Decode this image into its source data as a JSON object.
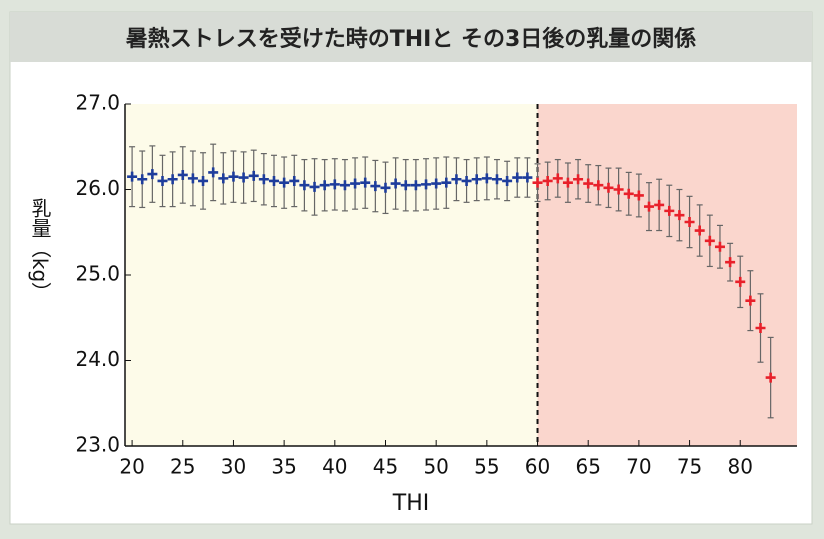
{
  "chart_data": {
    "type": "errorbar-scatter",
    "title": "暑熱ストレスを受けた時のTHIと その3日後の乳量の関係",
    "xlabel": "THI",
    "ylabel": "乳量（kg）",
    "xlim": [
      19.3,
      85.6
    ],
    "ylim": [
      23,
      27
    ],
    "xticks": [
      20,
      25,
      30,
      35,
      40,
      45,
      50,
      55,
      60,
      65,
      70,
      75,
      80
    ],
    "yticks": [
      {
        "value": 23,
        "label": "23.0"
      },
      {
        "value": 24,
        "label": "24.0"
      },
      {
        "value": 25,
        "label": "25.0"
      },
      {
        "value": 26,
        "label": "26.0"
      },
      {
        "value": 27,
        "label": "27.0"
      }
    ],
    "threshold_x": 60,
    "region_colors": [
      "#fdfbe9",
      "#fad6cd"
    ],
    "series": [
      {
        "color": "#1e3d9c",
        "x": [
          20,
          21,
          22,
          23,
          24,
          25,
          26,
          27,
          28,
          29,
          30,
          31,
          32,
          33,
          34,
          35,
          36,
          37,
          38,
          39,
          40,
          41,
          42,
          43,
          44,
          45,
          46,
          47,
          48,
          49,
          50,
          51,
          52,
          53,
          54,
          55,
          56,
          57,
          58,
          59
        ],
        "values": [
          26.15,
          26.12,
          26.18,
          26.1,
          26.12,
          26.17,
          26.13,
          26.1,
          26.2,
          26.13,
          26.15,
          26.14,
          26.16,
          26.12,
          26.1,
          26.08,
          26.1,
          26.05,
          26.03,
          26.05,
          26.06,
          26.05,
          26.07,
          26.08,
          26.04,
          26.02,
          26.07,
          26.05,
          26.05,
          26.06,
          26.07,
          26.08,
          26.12,
          26.1,
          26.12,
          26.13,
          26.12,
          26.1,
          26.14,
          26.14
        ],
        "errors": [
          0.35,
          0.33,
          0.33,
          0.3,
          0.32,
          0.33,
          0.32,
          0.33,
          0.33,
          0.3,
          0.3,
          0.3,
          0.3,
          0.3,
          0.3,
          0.3,
          0.3,
          0.3,
          0.33,
          0.3,
          0.3,
          0.3,
          0.3,
          0.3,
          0.3,
          0.3,
          0.3,
          0.3,
          0.3,
          0.3,
          0.3,
          0.3,
          0.25,
          0.25,
          0.25,
          0.25,
          0.23,
          0.23,
          0.23,
          0.23
        ]
      },
      {
        "color": "#e8202a",
        "x": [
          60,
          61,
          62,
          63,
          64,
          65,
          66,
          67,
          68,
          69,
          70,
          71,
          72,
          73,
          74,
          75,
          76,
          77,
          78,
          79,
          80,
          81,
          82,
          83
        ],
        "values": [
          26.08,
          26.1,
          26.13,
          26.08,
          26.12,
          26.07,
          26.05,
          26.02,
          26.0,
          25.95,
          25.93,
          25.8,
          25.82,
          25.75,
          25.7,
          25.62,
          25.52,
          25.4,
          25.33,
          25.15,
          24.92,
          24.7,
          24.38,
          23.8
        ],
        "errors": [
          0.22,
          0.22,
          0.22,
          0.23,
          0.23,
          0.22,
          0.23,
          0.23,
          0.25,
          0.25,
          0.25,
          0.28,
          0.3,
          0.3,
          0.3,
          0.3,
          0.3,
          0.3,
          0.25,
          0.22,
          0.3,
          0.35,
          0.4,
          0.47
        ]
      }
    ]
  }
}
